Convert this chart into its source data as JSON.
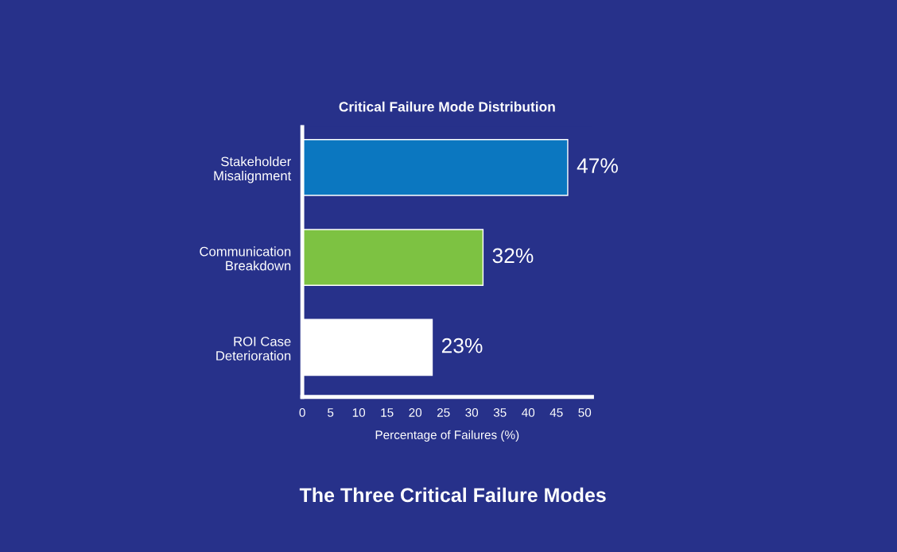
{
  "chart_data": {
    "type": "bar",
    "orientation": "horizontal",
    "title": "Critical Failure Mode Distribution",
    "xlabel": "Percentage of Failures (%)",
    "categories": [
      "Stakeholder\nMisalignment",
      "Communication\nBreakdown",
      "ROI Case\nDeterioration"
    ],
    "values": [
      47,
      32,
      23
    ],
    "colors": [
      "#0b77c0",
      "#7dc242",
      "#ffffff"
    ],
    "value_labels": [
      "47%",
      "32%",
      "23%"
    ],
    "xlim": [
      0,
      51.3
    ],
    "xticks": [
      0,
      5,
      10,
      15,
      20,
      25,
      30,
      35,
      40,
      45,
      50
    ],
    "grid": false,
    "legend": false,
    "annotations": [
      "The Three Critical Failure Modes"
    ]
  }
}
